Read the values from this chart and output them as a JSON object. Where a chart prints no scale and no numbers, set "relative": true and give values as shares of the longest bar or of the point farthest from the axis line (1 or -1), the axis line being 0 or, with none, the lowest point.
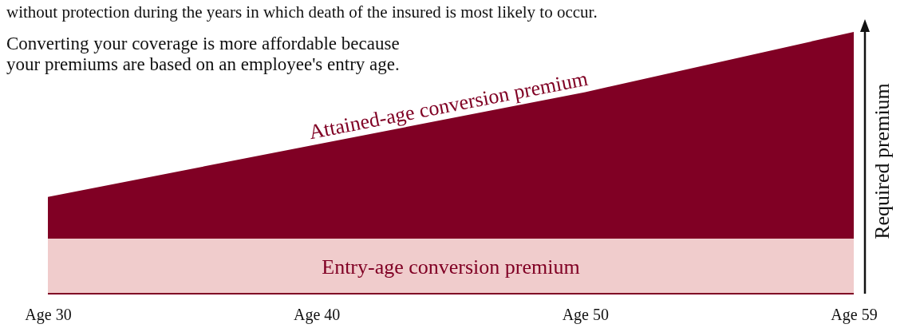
{
  "chart_data": {
    "type": "area",
    "relative": true,
    "legend": false,
    "categories": [
      "Age 30",
      "Age 40",
      "Age 50",
      "Age 59"
    ],
    "ylabel": "Required premium",
    "series": [
      {
        "name": "Attained-age conversion premium",
        "color": "#800024",
        "values": [
          0.37,
          0.57,
          0.77,
          1
        ]
      },
      {
        "name": "Entry-age conversion premium",
        "color": "#f0cccc",
        "values": [
          0.21,
          0.21,
          0.21,
          0.21
        ]
      }
    ],
    "annotations": [
      "without protection during the years in which death of the insured is most likely to occur.",
      "Converting your coverage is more affordable because your premiums are based on an employee's entry age."
    ]
  }
}
